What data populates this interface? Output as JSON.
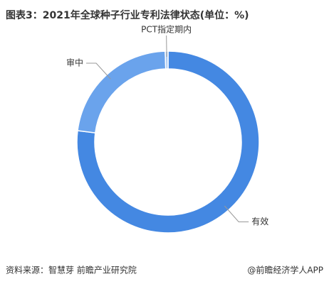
{
  "chart_data": {
    "type": "donut",
    "title": "图表3：2021年全球种子行业专利法律状态(单位：%)",
    "categories": [
      "有效",
      "审中",
      "PCT指定期内"
    ],
    "values": [
      77,
      22.5,
      0.5
    ],
    "colors": [
      "#4488e2",
      "#6aa3ec",
      "#a9c9f2"
    ],
    "source": "资料来源：智慧芽 前瞻产业研究院",
    "credit": "@前瞻经济学人APP"
  }
}
